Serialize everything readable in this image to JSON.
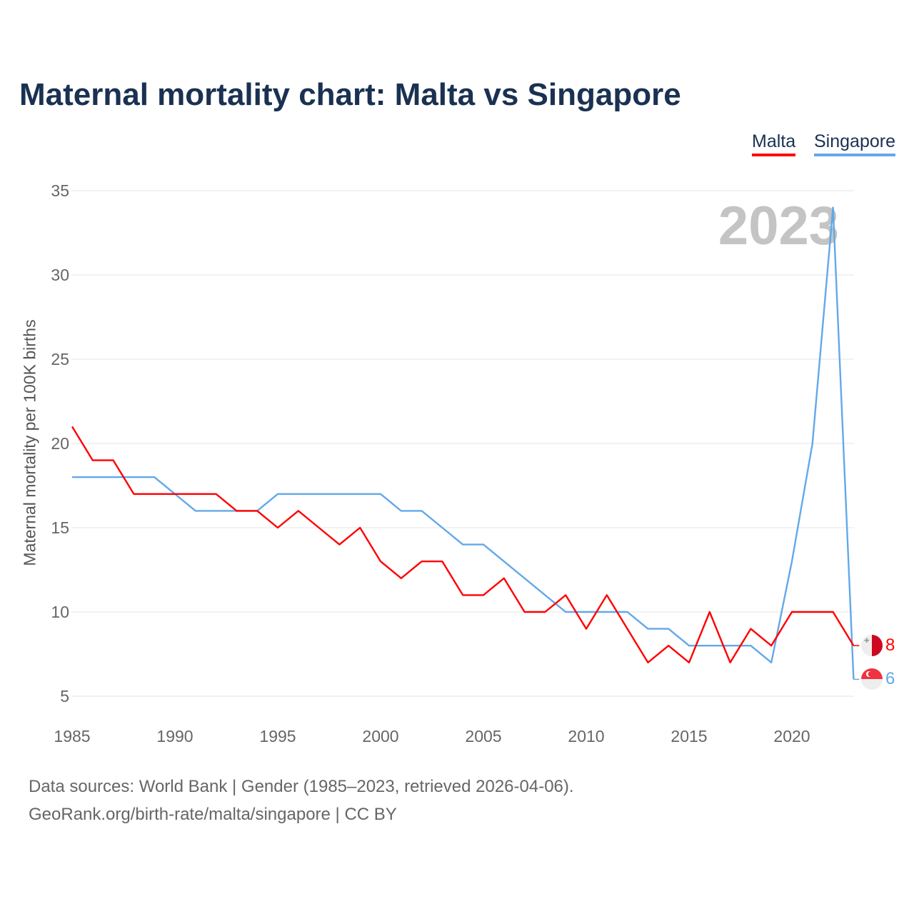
{
  "chart_data": {
    "type": "line",
    "title": "Maternal mortality chart: Malta vs Singapore",
    "ylabel": "Maternal mortality per 100K births",
    "xlabel": "",
    "xlim": [
      1985,
      2023
    ],
    "ylim": [
      5,
      35
    ],
    "x_ticks": [
      "1985",
      "1990",
      "1995",
      "2000",
      "2005",
      "2010",
      "2015",
      "2020"
    ],
    "y_ticks": [
      "5",
      "10",
      "15",
      "20",
      "25",
      "30",
      "35"
    ],
    "grid": true,
    "legend_placement": "top-right",
    "year_watermark": "2023",
    "x": [
      1985,
      1986,
      1987,
      1988,
      1989,
      1990,
      1991,
      1992,
      1993,
      1994,
      1995,
      1996,
      1997,
      1998,
      1999,
      2000,
      2001,
      2002,
      2003,
      2004,
      2005,
      2006,
      2007,
      2008,
      2009,
      2010,
      2011,
      2012,
      2013,
      2014,
      2015,
      2016,
      2017,
      2018,
      2019,
      2020,
      2021,
      2022,
      2023
    ],
    "series": [
      {
        "name": "Malta",
        "color": "#ff0000",
        "end_label": "8",
        "values": [
          21,
          19,
          19,
          17,
          17,
          17,
          17,
          17,
          16,
          16,
          15,
          16,
          15,
          14,
          15,
          13,
          12,
          13,
          13,
          11,
          11,
          12,
          10,
          10,
          11,
          9,
          11,
          9,
          7,
          8,
          7,
          10,
          7,
          9,
          8,
          10,
          10,
          10,
          8
        ]
      },
      {
        "name": "Singapore",
        "color": "#63a8ea",
        "end_label": "6",
        "values": [
          18,
          18,
          18,
          18,
          18,
          17,
          16,
          16,
          16,
          16,
          17,
          17,
          17,
          17,
          17,
          17,
          16,
          16,
          15,
          14,
          14,
          13,
          12,
          11,
          10,
          10,
          10,
          10,
          9,
          9,
          8,
          8,
          8,
          8,
          7,
          13,
          20,
          34,
          6
        ]
      }
    ]
  },
  "footer": {
    "source": "Data sources: World Bank | Gender (1985–2023, retrieved 2026-04-06).",
    "credit": "GeoRank.org/birth-rate/malta/singapore | CC BY"
  }
}
